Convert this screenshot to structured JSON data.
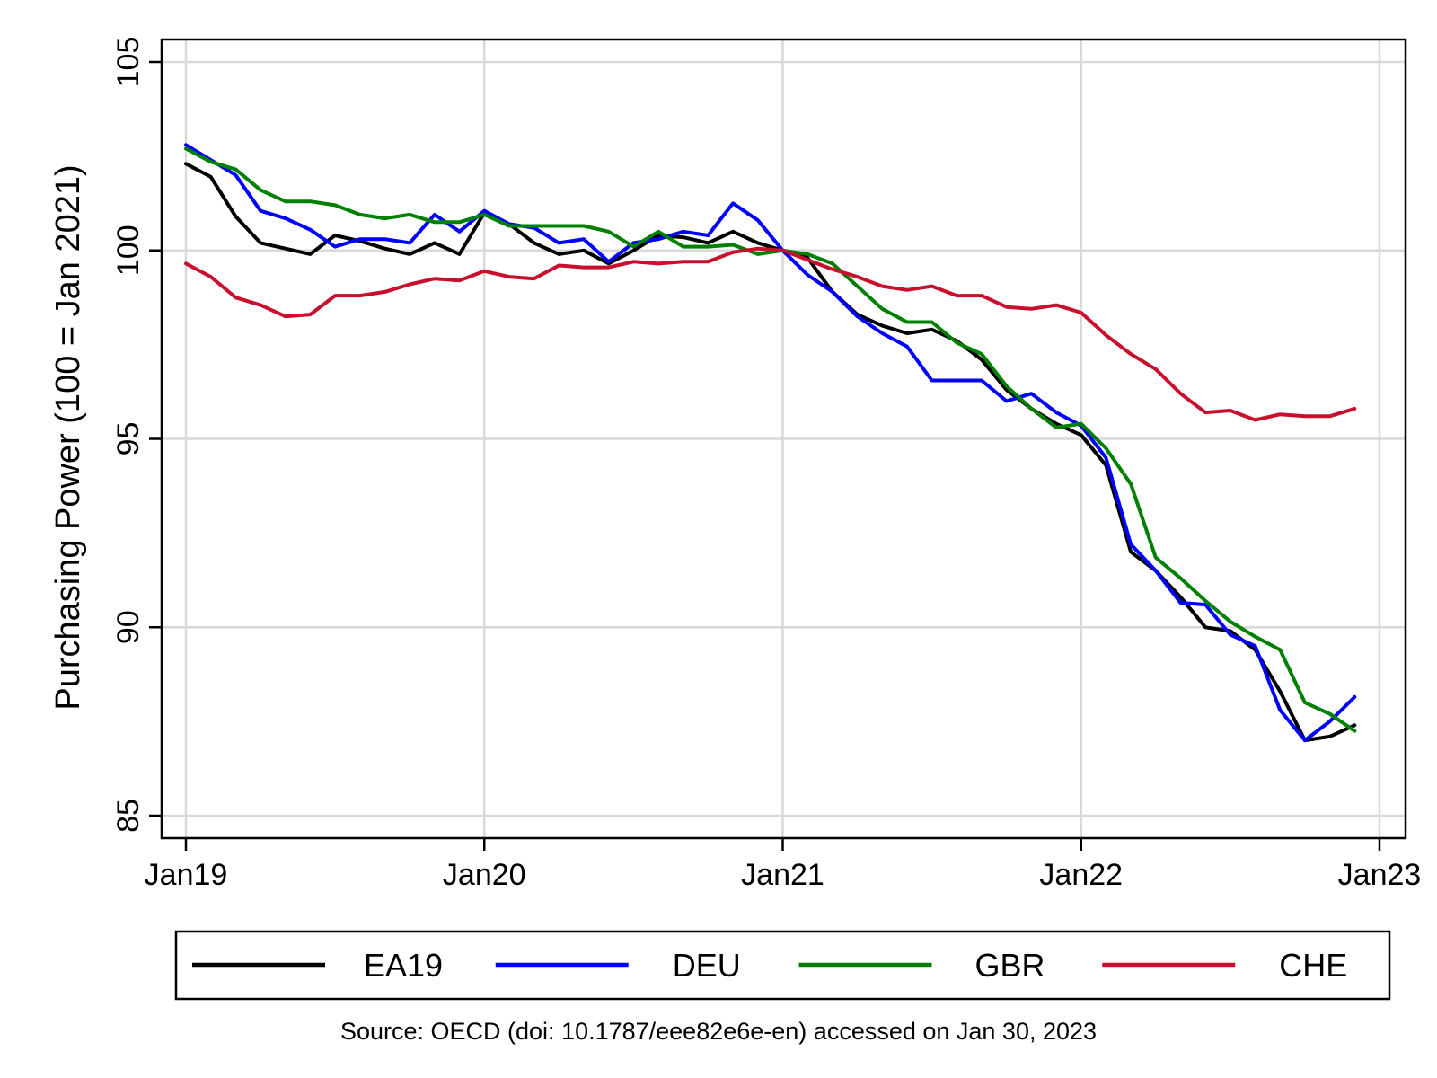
{
  "chart_data": {
    "type": "line",
    "title": "",
    "xlabel": "",
    "ylabel": "Purchasing Power (100 = Jan 2021)",
    "ylim": [
      85,
      105.6
    ],
    "xlim": [
      "2019-01",
      "2023-01"
    ],
    "yticks": [
      "85",
      "90",
      "95",
      "100",
      "105"
    ],
    "xticks": [
      "Jan19",
      "Jan20",
      "Jan21",
      "Jan22",
      "Jan23"
    ],
    "grid": true,
    "legend_position": "bottom",
    "x": [
      "2019-01",
      "2019-02",
      "2019-03",
      "2019-04",
      "2019-05",
      "2019-06",
      "2019-07",
      "2019-08",
      "2019-09",
      "2019-10",
      "2019-11",
      "2019-12",
      "2020-01",
      "2020-02",
      "2020-03",
      "2020-04",
      "2020-05",
      "2020-06",
      "2020-07",
      "2020-08",
      "2020-09",
      "2020-10",
      "2020-11",
      "2020-12",
      "2021-01",
      "2021-02",
      "2021-03",
      "2021-04",
      "2021-05",
      "2021-06",
      "2021-07",
      "2021-08",
      "2021-09",
      "2021-10",
      "2021-11",
      "2021-12",
      "2022-01",
      "2022-02",
      "2022-03",
      "2022-04",
      "2022-05",
      "2022-06",
      "2022-07",
      "2022-08",
      "2022-09",
      "2022-10",
      "2022-11",
      "2022-12"
    ],
    "series": [
      {
        "name": "EA19",
        "color": "#000000",
        "values": [
          102.3,
          101.95,
          100.9,
          100.2,
          100.05,
          99.9,
          100.4,
          100.25,
          100.05,
          99.9,
          100.2,
          99.9,
          101.0,
          100.7,
          100.2,
          99.9,
          100.0,
          99.65,
          100.0,
          100.4,
          100.35,
          100.2,
          100.5,
          100.2,
          100.0,
          99.8,
          98.9,
          98.3,
          98.0,
          97.8,
          97.9,
          97.6,
          97.1,
          96.3,
          95.8,
          95.4,
          95.1,
          94.3,
          92.0,
          91.5,
          90.8,
          90.0,
          89.9,
          89.4,
          88.3,
          87.0,
          87.1,
          87.4
        ]
      },
      {
        "name": "DEU",
        "color": "#0000ff",
        "values": [
          102.8,
          102.4,
          102.0,
          101.05,
          100.85,
          100.55,
          100.1,
          100.3,
          100.3,
          100.2,
          100.95,
          100.5,
          101.05,
          100.7,
          100.6,
          100.2,
          100.3,
          99.7,
          100.2,
          100.3,
          100.5,
          100.4,
          101.25,
          100.8,
          100.0,
          99.35,
          98.9,
          98.25,
          97.8,
          97.45,
          96.55,
          96.55,
          96.55,
          96.0,
          96.2,
          95.7,
          95.35,
          94.5,
          92.2,
          91.5,
          90.65,
          90.6,
          89.8,
          89.5,
          87.8,
          87.0,
          87.5,
          88.15
        ]
      },
      {
        "name": "GBR",
        "color": "#008000",
        "values": [
          102.7,
          102.35,
          102.15,
          101.6,
          101.3,
          101.3,
          101.2,
          100.95,
          100.85,
          100.95,
          100.75,
          100.75,
          100.95,
          100.65,
          100.65,
          100.65,
          100.65,
          100.5,
          100.1,
          100.5,
          100.1,
          100.1,
          100.15,
          99.9,
          100.0,
          99.9,
          99.65,
          99.05,
          98.45,
          98.1,
          98.1,
          97.55,
          97.25,
          96.4,
          95.8,
          95.3,
          95.4,
          94.75,
          93.8,
          91.85,
          91.3,
          90.7,
          90.15,
          89.75,
          89.4,
          88.0,
          87.7,
          87.25
        ]
      },
      {
        "name": "CHE",
        "color": "#c8102e",
        "values": [
          99.65,
          99.3,
          98.75,
          98.55,
          98.25,
          98.3,
          98.8,
          98.8,
          98.9,
          99.1,
          99.25,
          99.2,
          99.45,
          99.3,
          99.25,
          99.6,
          99.55,
          99.55,
          99.7,
          99.65,
          99.7,
          99.7,
          99.95,
          100.05,
          100.0,
          99.75,
          99.5,
          99.3,
          99.05,
          98.95,
          99.05,
          98.8,
          98.8,
          98.5,
          98.45,
          98.55,
          98.35,
          97.75,
          97.25,
          96.85,
          96.2,
          95.7,
          95.75,
          95.5,
          95.65,
          95.6,
          95.6,
          95.8
        ]
      }
    ],
    "source_note": "Source: OECD (doi: 10.1787/eee82e6e-en) accessed on Jan 30, 2023"
  }
}
